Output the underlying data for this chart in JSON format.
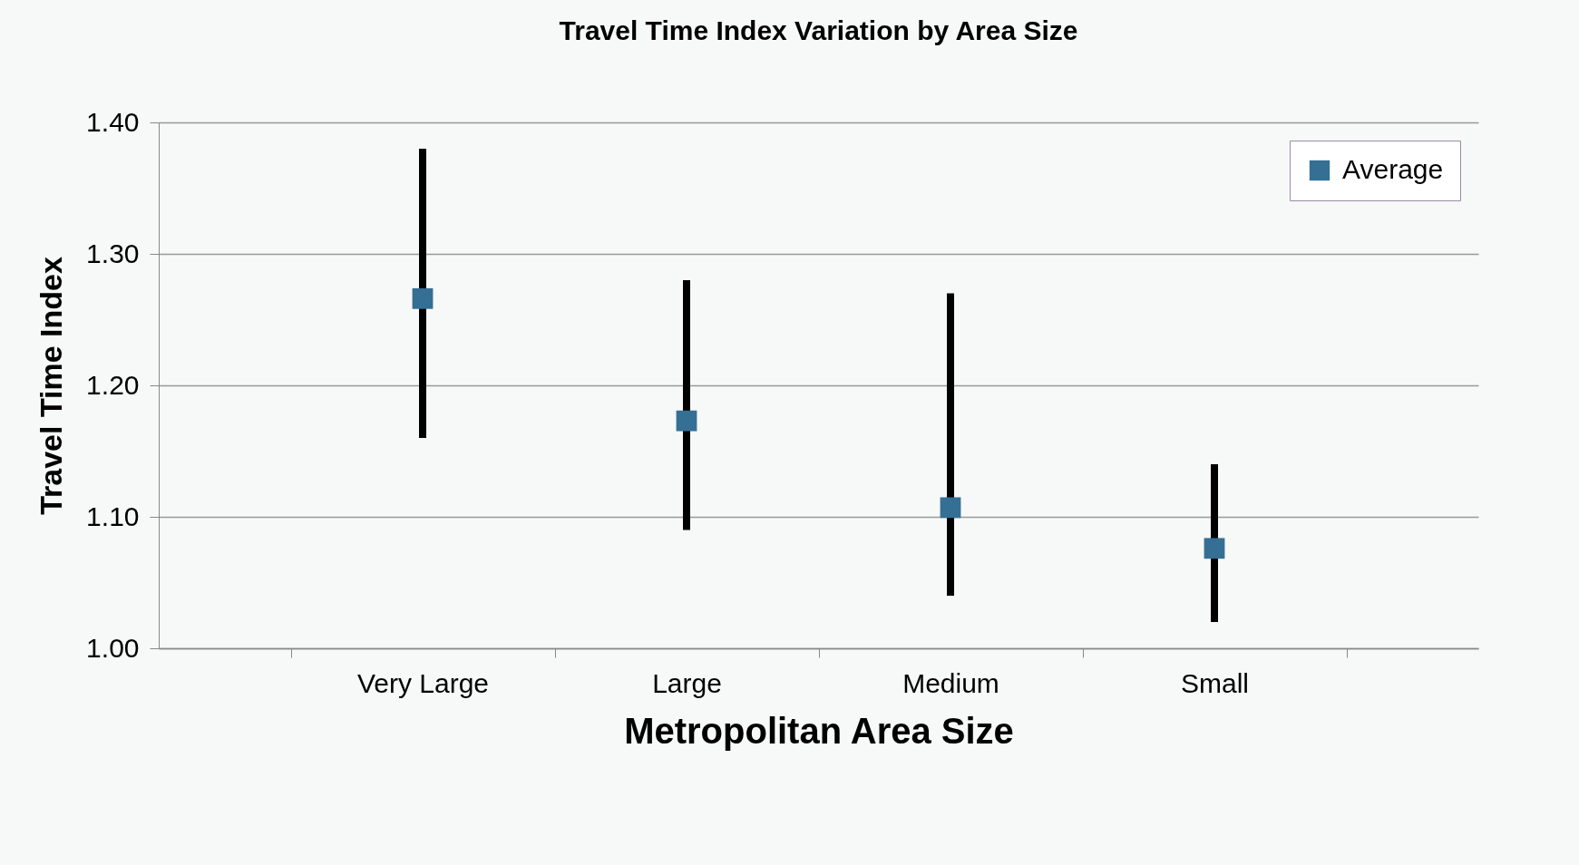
{
  "chart_data": {
    "type": "scatter",
    "title": "Travel Time Index Variation by Area Size",
    "xlabel": "Metropolitan Area Size",
    "ylabel": "Travel Time Index",
    "categories": [
      "Very Large",
      "Large",
      "Medium",
      "Small"
    ],
    "series": [
      {
        "name": "Average",
        "color": "#356f94",
        "values": [
          1.266,
          1.173,
          1.107,
          1.076
        ],
        "errors": [
          [
            1.16,
            1.38
          ],
          [
            1.09,
            1.28
          ],
          [
            1.04,
            1.27
          ],
          [
            1.02,
            1.14
          ]
        ]
      }
    ],
    "ylim": [
      1.0,
      1.4
    ],
    "yticks": [
      {
        "value": 1.0,
        "label": "1.00"
      },
      {
        "value": 1.1,
        "label": "1.10"
      },
      {
        "value": 1.2,
        "label": "1.20"
      },
      {
        "value": 1.3,
        "label": "1.30"
      },
      {
        "value": 1.4,
        "label": "1.40"
      }
    ],
    "grid": "y",
    "legend": "top right",
    "marker": "square"
  }
}
